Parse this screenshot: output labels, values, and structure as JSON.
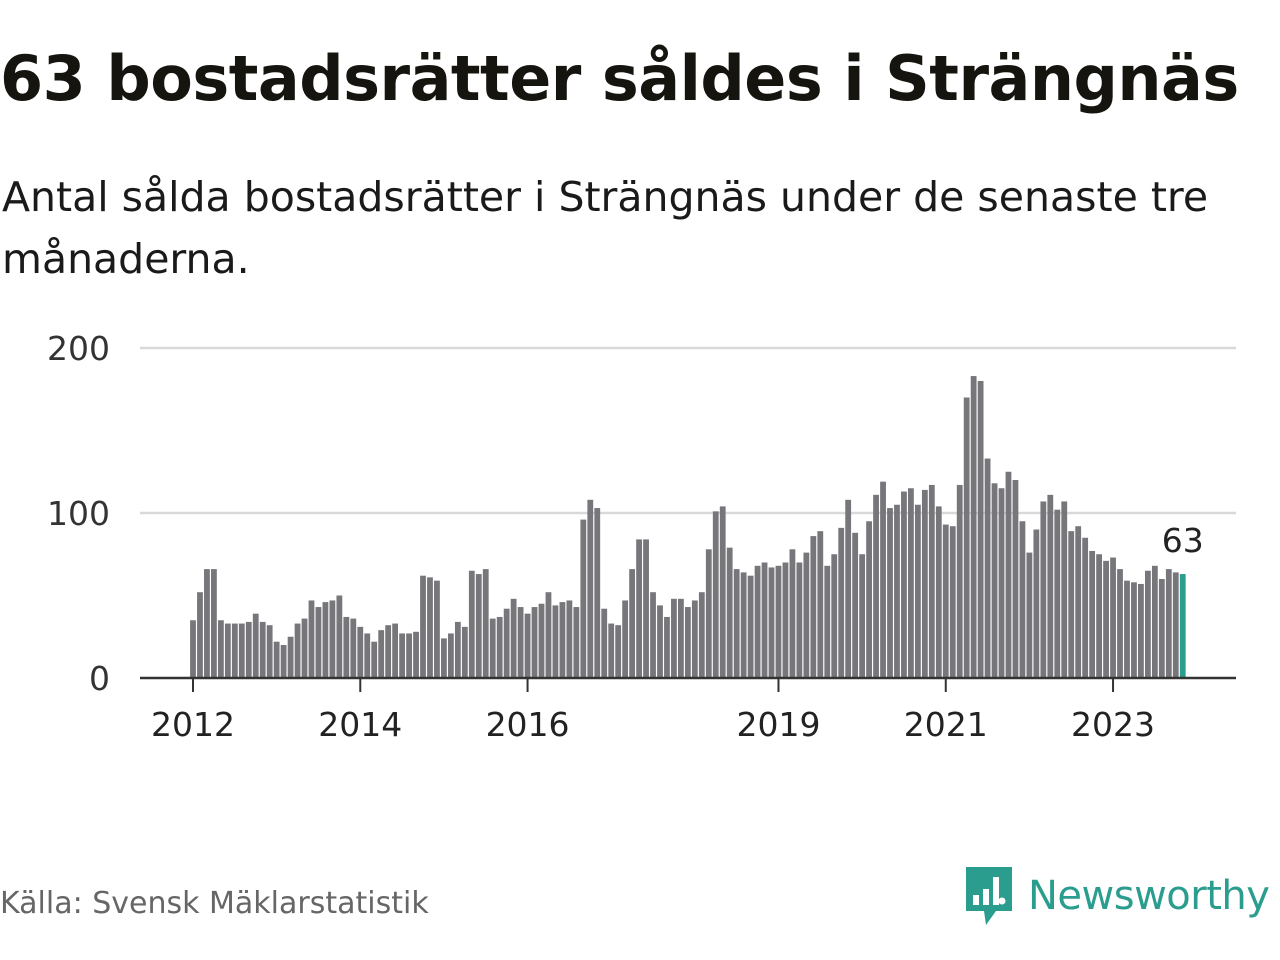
{
  "title": "63 bostadsrätter såldes i Strängnäs",
  "subtitle": "Antal sålda bostadsrätter i Strängnäs under de senaste tre månaderna.",
  "source": "Källa: Svensk Mäklarstatistik",
  "brand": {
    "name": "Newsworthy",
    "icon": "newsworthy-logo-icon",
    "color": "#2a9d8f"
  },
  "colors": {
    "bar": "#77767b",
    "highlight": "#2a9d8f",
    "grid": "#d9d9d9",
    "axis": "#333333"
  },
  "chart_data": {
    "type": "bar",
    "ylim": [
      0,
      200
    ],
    "yticks": [
      0,
      100,
      200
    ],
    "grid": true,
    "x_start": "2012-01",
    "xtick_labels": [
      "2012",
      "2014",
      "2016",
      "2019",
      "2021",
      "2023"
    ],
    "xtick_months": [
      "2012-01",
      "2014-01",
      "2016-01",
      "2019-01",
      "2021-01",
      "2023-01"
    ],
    "highlight_label": "63",
    "values": [
      35,
      52,
      66,
      66,
      35,
      33,
      33,
      33,
      34,
      39,
      34,
      32,
      22,
      20,
      25,
      33,
      36,
      47,
      43,
      46,
      47,
      50,
      37,
      36,
      31,
      27,
      22,
      29,
      32,
      33,
      27,
      27,
      28,
      62,
      61,
      59,
      24,
      27,
      34,
      31,
      65,
      63,
      66,
      36,
      37,
      42,
      48,
      43,
      39,
      43,
      45,
      52,
      44,
      46,
      47,
      43,
      96,
      108,
      103,
      42,
      33,
      32,
      47,
      66,
      84,
      84,
      52,
      44,
      37,
      48,
      48,
      43,
      47,
      52,
      78,
      101,
      104,
      79,
      66,
      64,
      62,
      68,
      70,
      67,
      68,
      70,
      78,
      70,
      76,
      86,
      89,
      68,
      75,
      91,
      108,
      88,
      75,
      95,
      111,
      119,
      103,
      105,
      113,
      115,
      105,
      114,
      117,
      104,
      93,
      92,
      117,
      170,
      183,
      180,
      133,
      118,
      115,
      125,
      120,
      95,
      76,
      90,
      107,
      111,
      102,
      107,
      89,
      92,
      85,
      77,
      75,
      71,
      73,
      66,
      59,
      58,
      57,
      65,
      68,
      60,
      66,
      64,
      63
    ]
  }
}
